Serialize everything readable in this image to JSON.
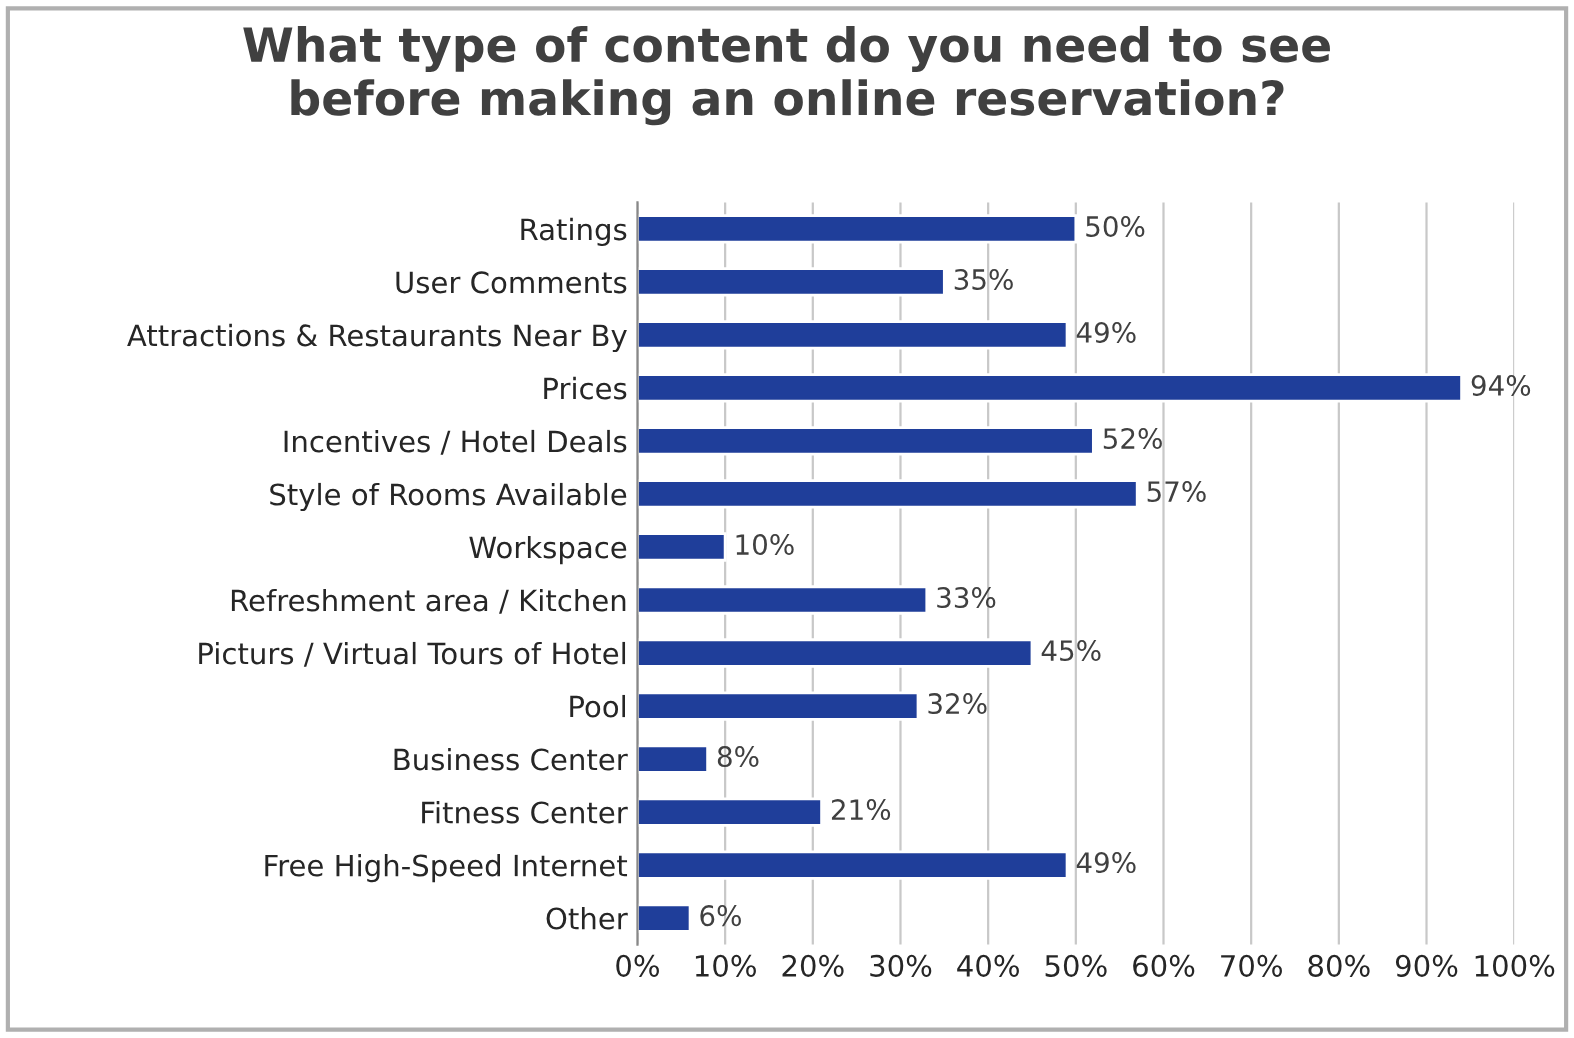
{
  "chart_data": {
    "type": "bar",
    "orientation": "horizontal",
    "title": "What type of content do you need to see\nbefore making an online reservation?",
    "categories": [
      "Ratings",
      "User Comments",
      "Attractions & Restaurants Near By",
      "Prices",
      "Incentives / Hotel Deals",
      "Style of Rooms Available",
      "Workspace",
      "Refreshment area / Kitchen",
      "Picturs / Virtual Tours of Hotel",
      "Pool",
      "Business Center",
      "Fitness Center",
      "Free High-Speed Internet",
      "Other"
    ],
    "values": [
      50,
      35,
      49,
      94,
      52,
      57,
      10,
      33,
      45,
      32,
      8,
      21,
      49,
      6
    ],
    "value_labels": [
      "50%",
      "35%",
      "49%",
      "94%",
      "52%",
      "57%",
      "10%",
      "33%",
      "45%",
      "32%",
      "8%",
      "21%",
      "49%",
      "6%"
    ],
    "color": "#1f3e9a",
    "xlim": [
      0,
      100
    ],
    "xticks": [
      {
        "value": 0,
        "label": "0%"
      },
      {
        "value": 10,
        "label": "10%"
      },
      {
        "value": 20,
        "label": "20%"
      },
      {
        "value": 30,
        "label": "30%"
      },
      {
        "value": 40,
        "label": "40%"
      },
      {
        "value": 50,
        "label": "50%"
      },
      {
        "value": 60,
        "label": "60%"
      },
      {
        "value": 70,
        "label": "70%"
      },
      {
        "value": 80,
        "label": "80%"
      },
      {
        "value": 90,
        "label": "90%"
      },
      {
        "value": 100,
        "label": "100%"
      }
    ],
    "grid": "x",
    "legend": false
  }
}
